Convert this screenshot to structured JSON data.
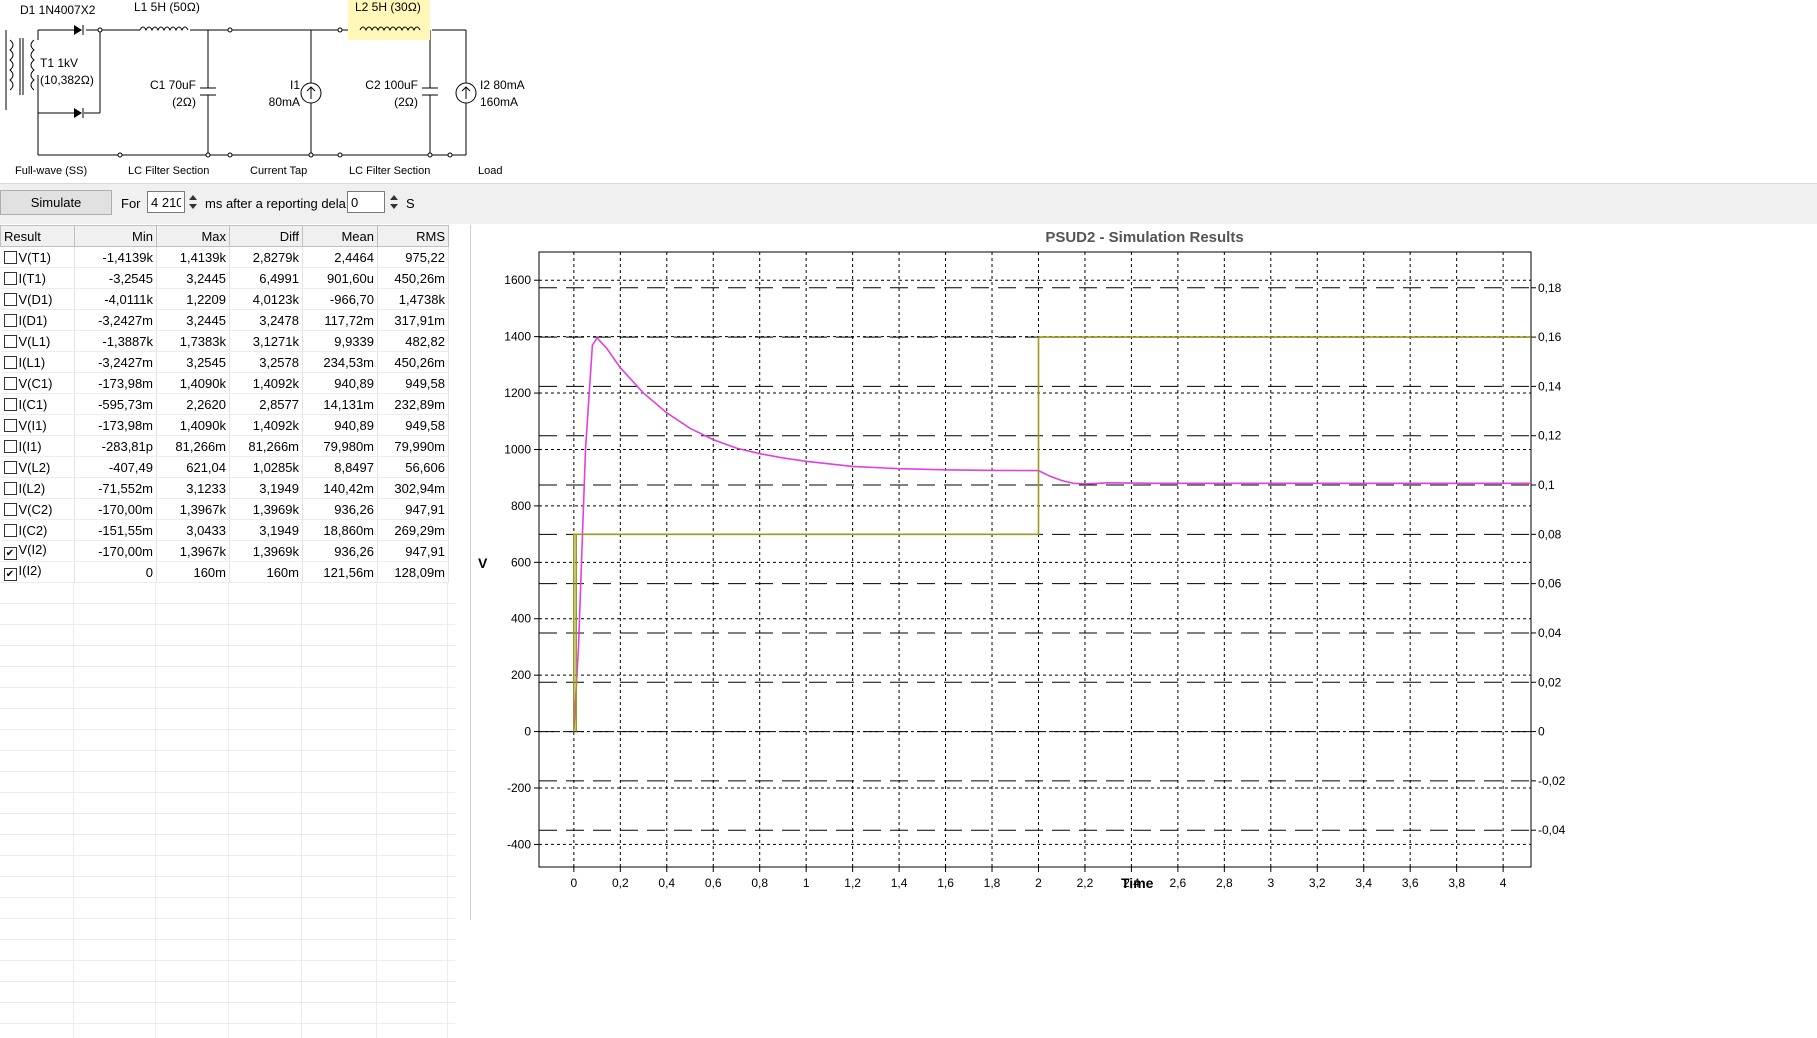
{
  "schematic": {
    "labels": {
      "d1": "D1 1N4007X2",
      "l1": "L1 5H (50Ω)",
      "l2": "L2 5H (30Ω)",
      "t1_a": "T1 1kV",
      "t1_b": "(10,382Ω)",
      "c1_a": "C1 70uF",
      "c1_b": "(2Ω)",
      "i1_a": "I1",
      "i1_b": "80mA",
      "c2_a": "C2 100uF",
      "c2_b": "(2Ω)",
      "i2_a": "I2 80mA",
      "i2_b": "160mA"
    },
    "sections": [
      "Full-wave (SS)",
      "LC Filter Section",
      "Current Tap",
      "LC Filter Section",
      "Load"
    ]
  },
  "toolbar": {
    "simulate_label": "Simulate",
    "for_label": "For",
    "duration_value": "4 210",
    "after_label": "ms after a reporting dela",
    "delay_value": "0",
    "unit_label": "S"
  },
  "results": {
    "columns": [
      "Result",
      "Min",
      "Max",
      "Diff",
      "Mean",
      "RMS"
    ],
    "rows": [
      {
        "checked": false,
        "name": "V(T1)",
        "min": "-1,4139k",
        "max": "1,4139k",
        "diff": "2,8279k",
        "mean": "2,4464",
        "rms": "975,22"
      },
      {
        "checked": false,
        "name": "I(T1)",
        "min": "-3,2545",
        "max": "3,2445",
        "diff": "6,4991",
        "mean": "901,60u",
        "rms": "450,26m"
      },
      {
        "checked": false,
        "name": "V(D1)",
        "min": "-4,0111k",
        "max": "1,2209",
        "diff": "4,0123k",
        "mean": "-966,70",
        "rms": "1,4738k"
      },
      {
        "checked": false,
        "name": "I(D1)",
        "min": "-3,2427m",
        "max": "3,2445",
        "diff": "3,2478",
        "mean": "117,72m",
        "rms": "317,91m"
      },
      {
        "checked": false,
        "name": "V(L1)",
        "min": "-1,3887k",
        "max": "1,7383k",
        "diff": "3,1271k",
        "mean": "9,9339",
        "rms": "482,82"
      },
      {
        "checked": false,
        "name": "I(L1)",
        "min": "-3,2427m",
        "max": "3,2545",
        "diff": "3,2578",
        "mean": "234,53m",
        "rms": "450,26m"
      },
      {
        "checked": false,
        "name": "V(C1)",
        "min": "-173,98m",
        "max": "1,4090k",
        "diff": "1,4092k",
        "mean": "940,89",
        "rms": "949,58"
      },
      {
        "checked": false,
        "name": "I(C1)",
        "min": "-595,73m",
        "max": "2,2620",
        "diff": "2,8577",
        "mean": "14,131m",
        "rms": "232,89m"
      },
      {
        "checked": false,
        "name": "V(I1)",
        "min": "-173,98m",
        "max": "1,4090k",
        "diff": "1,4092k",
        "mean": "940,89",
        "rms": "949,58"
      },
      {
        "checked": false,
        "name": "I(I1)",
        "min": "-283,81p",
        "max": "81,266m",
        "diff": "81,266m",
        "mean": "79,980m",
        "rms": "79,990m"
      },
      {
        "checked": false,
        "name": "V(L2)",
        "min": "-407,49",
        "max": "621,04",
        "diff": "1,0285k",
        "mean": "8,8497",
        "rms": "56,606"
      },
      {
        "checked": false,
        "name": "I(L2)",
        "min": "-71,552m",
        "max": "3,1233",
        "diff": "3,1949",
        "mean": "140,42m",
        "rms": "302,94m"
      },
      {
        "checked": false,
        "name": "V(C2)",
        "min": "-170,00m",
        "max": "1,3967k",
        "diff": "1,3969k",
        "mean": "936,26",
        "rms": "947,91"
      },
      {
        "checked": false,
        "name": "I(C2)",
        "min": "-151,55m",
        "max": "3,0433",
        "diff": "3,1949",
        "mean": "18,860m",
        "rms": "269,29m"
      },
      {
        "checked": true,
        "name": "V(I2)",
        "min": "-170,00m",
        "max": "1,3967k",
        "diff": "1,3969k",
        "mean": "936,26",
        "rms": "947,91"
      },
      {
        "checked": true,
        "name": "I(I2)",
        "min": "0",
        "max": "160m",
        "diff": "160m",
        "mean": "121,56m",
        "rms": "128,09m"
      }
    ]
  },
  "chart_data": {
    "type": "line",
    "title": "PSUD2 - Simulation Results",
    "xlabel": "Time",
    "ylabel": "V",
    "xlim": [
      -0.15,
      4.12
    ],
    "ylim": [
      -480,
      1700
    ],
    "y2lim": [
      -0.05493,
      0.19451
    ],
    "x_ticks": [
      "0",
      "0,2",
      "0,4",
      "0,6",
      "0,8",
      "1",
      "1,2",
      "1,4",
      "1,6",
      "1,8",
      "2",
      "2,2",
      "2,4",
      "2,6",
      "2,8",
      "3",
      "3,2",
      "3,4",
      "3,6",
      "3,8",
      "4"
    ],
    "y_ticks": [
      "-400",
      "-200",
      "0",
      "200",
      "400",
      "600",
      "800",
      "1000",
      "1200",
      "1400",
      "1600"
    ],
    "y2_ticks": [
      "-0,04",
      "-0,02",
      "0",
      "0,02",
      "0,04",
      "0,06",
      "0,08",
      "0,1",
      "0,12",
      "0,14",
      "0,16",
      "0,18"
    ],
    "grid": true,
    "series": [
      {
        "name": "V(I2)",
        "axis": "left",
        "color": "#e040e0",
        "x": [
          0.0,
          0.02,
          0.05,
          0.08,
          0.1,
          0.14,
          0.2,
          0.3,
          0.4,
          0.5,
          0.6,
          0.7,
          0.8,
          0.9,
          1.0,
          1.2,
          1.4,
          1.6,
          1.8,
          2.0,
          2.05,
          2.1,
          2.15,
          2.2,
          2.3,
          2.5,
          2.8,
          3.2,
          3.6,
          4.0,
          4.12
        ],
        "y": [
          0,
          300,
          1000,
          1370,
          1395,
          1360,
          1290,
          1200,
          1130,
          1075,
          1035,
          1005,
          985,
          970,
          958,
          940,
          932,
          928,
          926,
          925,
          905,
          890,
          880,
          878,
          882,
          880,
          880,
          880,
          880,
          880,
          880
        ]
      },
      {
        "name": "I(I2)",
        "axis": "right",
        "color": "#9a9a20",
        "x": [
          0.0,
          0.0,
          0.01,
          0.01,
          0.01,
          0.02,
          0.02,
          2.0,
          2.0,
          4.12
        ],
        "y": [
          0,
          0.08,
          0.08,
          0,
          0.08,
          0.08,
          0.08,
          0.08,
          0.16,
          0.16
        ]
      }
    ]
  }
}
